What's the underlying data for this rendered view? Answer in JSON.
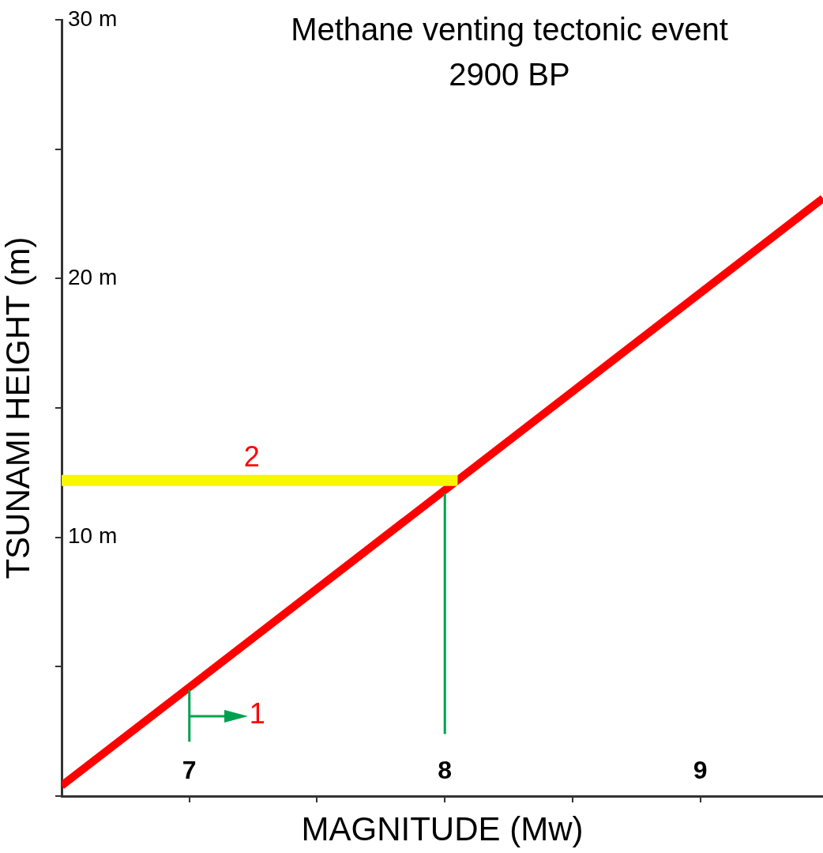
{
  "chart_data": {
    "type": "line",
    "title": "Methane venting tectonic event",
    "subtitle": "2900 BP",
    "xlabel": "MAGNITUDE (Mw)",
    "ylabel": "TSUNAMI HEIGHT (m)",
    "xlim": [
      6.5,
      9.48
    ],
    "ylim": [
      0,
      30
    ],
    "xticks": [
      7,
      {
        "value": 7.5,
        "label": null
      },
      8,
      {
        "value": 8.5,
        "label": null
      },
      9
    ],
    "yticks": [
      {
        "value": 0,
        "label": null
      },
      {
        "value": 5,
        "label": null
      },
      {
        "value": 10,
        "label": "10 m"
      },
      {
        "value": 15,
        "label": null
      },
      {
        "value": 20,
        "label": "20 m"
      },
      {
        "value": 25,
        "label": null
      },
      {
        "value": 30,
        "label": "30 m"
      }
    ],
    "marker": "none",
    "line_style": "solid",
    "series": [
      {
        "color": "#f7f700",
        "x": [
          6.5,
          8.05
        ],
        "values": [
          12.2,
          12.2
        ]
      },
      {
        "color": "#00a050",
        "x": [
          7,
          7
        ],
        "values": [
          2.1,
          4.1
        ]
      },
      {
        "color": "#00a050",
        "x": [
          8,
          8
        ],
        "values": [
          2.4,
          11.7
        ]
      },
      {
        "color": "#ff0000",
        "x": [
          6.5,
          9.48
        ],
        "values": [
          0.4,
          23.1
        ]
      }
    ],
    "annotations": [
      "1",
      "2"
    ]
  }
}
